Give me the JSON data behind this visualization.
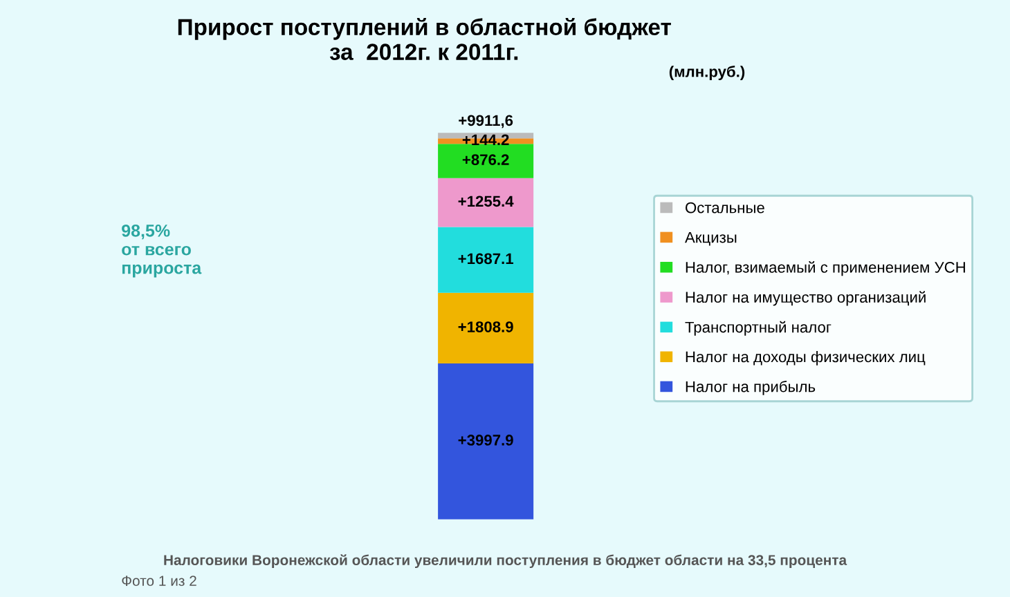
{
  "chart_data": {
    "type": "bar",
    "stacked": true,
    "title": "Прирост поступлений в областной бюджет\nза  2012г. к 2011г.",
    "subtitle": "(млн.руб.)",
    "categories": [
      null
    ],
    "series": [
      {
        "name": "Налог на прибыль",
        "color": "#3355dd",
        "values": [
          3997.9
        ],
        "value_labels": [
          "+3997.9"
        ]
      },
      {
        "name": "Налог на доходы физических лиц",
        "color": "#f0b400",
        "values": [
          1808.9
        ],
        "value_labels": [
          "+1808.9"
        ]
      },
      {
        "name": "Транспортный налог",
        "color": "#22dddd",
        "values": [
          1687.1
        ],
        "value_labels": [
          "+1687.1"
        ]
      },
      {
        "name": "Налог на имущество организаций",
        "color": "#ee99cc",
        "values": [
          1255.4
        ],
        "value_labels": [
          "+1255.4"
        ]
      },
      {
        "name": "Налог, взимаемый с применением УСН",
        "color": "#22dd22",
        "values": [
          876.2
        ],
        "value_labels": [
          "+876.2"
        ]
      },
      {
        "name": "Акцизы",
        "color": "#f09020",
        "values": [
          144.2
        ],
        "value_labels": [
          "+144.2"
        ]
      },
      {
        "name": "Остальные",
        "color": "#bbbbbb",
        "values": [
          141.9
        ],
        "value_labels": [
          null
        ]
      }
    ],
    "legend": "right",
    "totals": [
      "+9911,6"
    ],
    "annotations": [
      "98,5%\nот всего\nприроста",
      "Налоговики Воронежской области увеличили поступления в бюджет области на 33,5 процента",
      "Фото 1 из 2"
    ]
  }
}
